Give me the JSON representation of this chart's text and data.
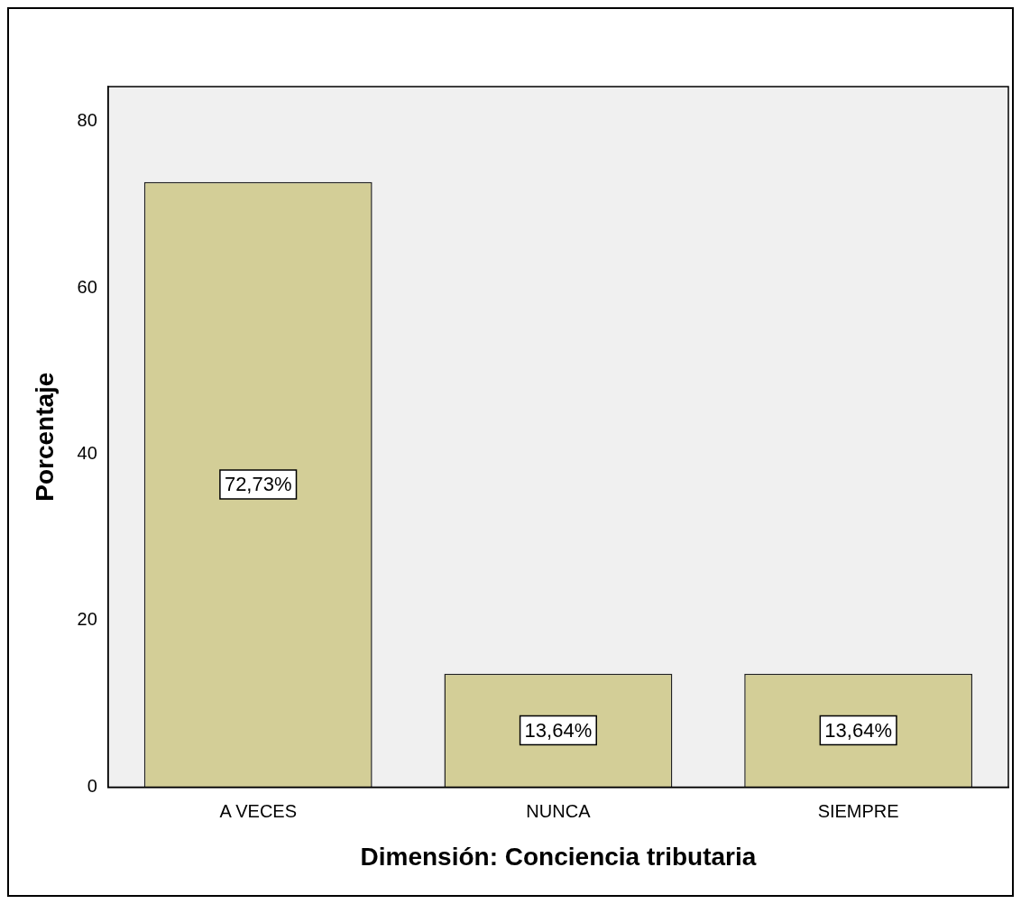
{
  "chart_data": {
    "type": "bar",
    "xlabel": "Dimensión: Conciencia tributaria",
    "ylabel": "Porcentaje",
    "categories": [
      "A VECES",
      "NUNCA",
      "SIEMPRE"
    ],
    "values": [
      72.73,
      13.64,
      13.64
    ],
    "value_labels": [
      "72,73%",
      "13,64%",
      "13,64%"
    ],
    "color": "#d3ce97",
    "ylim": [
      0,
      84.2
    ],
    "yticks": [
      0,
      20,
      40,
      60,
      80
    ],
    "grid": false,
    "legend": false
  }
}
